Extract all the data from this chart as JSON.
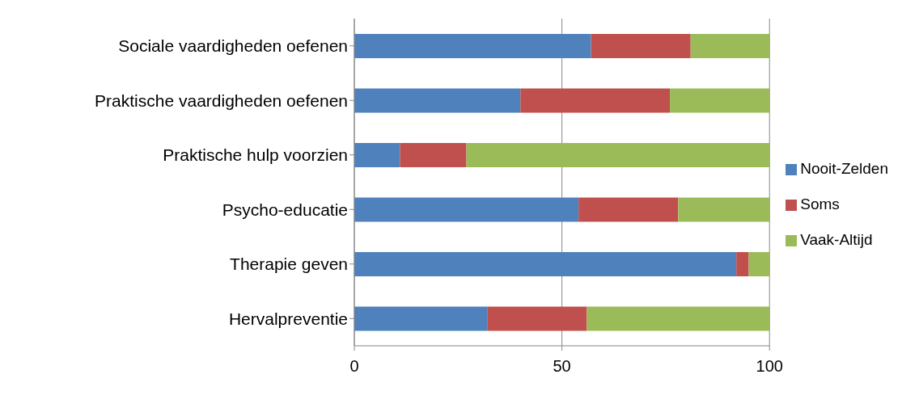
{
  "chart_data": {
    "type": "bar",
    "orientation": "horizontal",
    "stacked": true,
    "categories": [
      "Sociale vaardigheden oefenen",
      "Praktische vaardigheden oefenen",
      "Praktische hulp voorzien",
      "Psycho-educatie",
      "Therapie geven",
      "Hervalpreventie"
    ],
    "series": [
      {
        "name": "Nooit-Zelden",
        "color": "#4f81bd",
        "values": [
          57,
          40,
          11,
          54,
          92,
          32
        ]
      },
      {
        "name": "Soms",
        "color": "#c0504d",
        "values": [
          24,
          36,
          16,
          24,
          3,
          24
        ]
      },
      {
        "name": "Vaak-Altijd",
        "color": "#9bbb59",
        "values": [
          19,
          24,
          73,
          22,
          5,
          44
        ]
      }
    ],
    "xlim": [
      0,
      100
    ],
    "xticks": [
      0,
      50,
      100
    ],
    "grid": "x",
    "legend": "right"
  }
}
